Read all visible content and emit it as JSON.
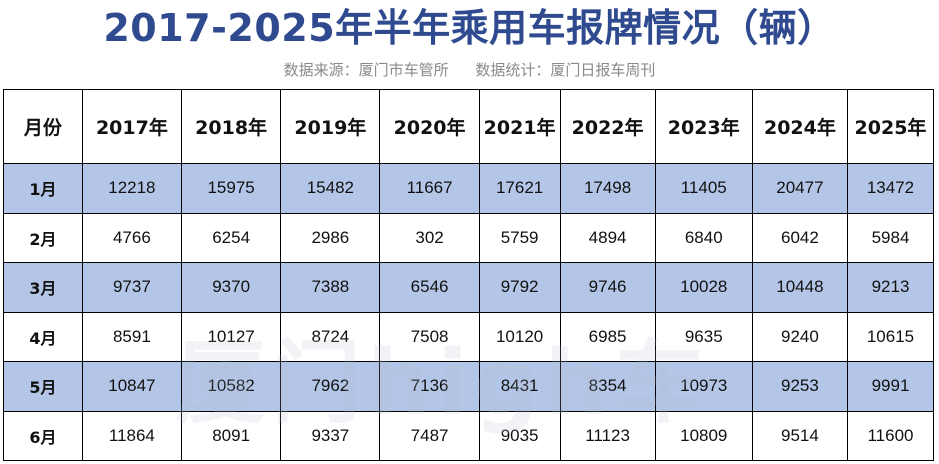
{
  "title": "2017-2025年半年乘用车报牌情况（辆）",
  "subtitle": {
    "source": "数据来源：厦门市车管所",
    "stats": "数据统计：厦门日报车周刊"
  },
  "watermark": "厦门high车",
  "table": {
    "headers": [
      "月份",
      "2017年",
      "2018年",
      "2019年",
      "2020年",
      "2021年",
      "2022年",
      "2023年",
      "2024年",
      "2025年"
    ],
    "rows": [
      [
        "1月",
        "12218",
        "15975",
        "15482",
        "11667",
        "17621",
        "17498",
        "11405",
        "20477",
        "13472"
      ],
      [
        "2月",
        "4766",
        "6254",
        "2986",
        "302",
        "5759",
        "4894",
        "6840",
        "6042",
        "5984"
      ],
      [
        "3月",
        "9737",
        "9370",
        "7388",
        "6546",
        "9792",
        "9746",
        "10028",
        "10448",
        "9213"
      ],
      [
        "4月",
        "8591",
        "10127",
        "8724",
        "7508",
        "10120",
        "6985",
        "9635",
        "9240",
        "10615"
      ],
      [
        "5月",
        "10847",
        "10582",
        "7962",
        "7136",
        "8431",
        "8354",
        "10973",
        "9253",
        "9991"
      ],
      [
        "6月",
        "11864",
        "8091",
        "9337",
        "7487",
        "9035",
        "11123",
        "10809",
        "9514",
        "11600"
      ]
    ]
  },
  "colors": {
    "title": "#2f4a8f",
    "alt_row": "#b4c6e7",
    "subtitle": "#8a8a8a"
  }
}
